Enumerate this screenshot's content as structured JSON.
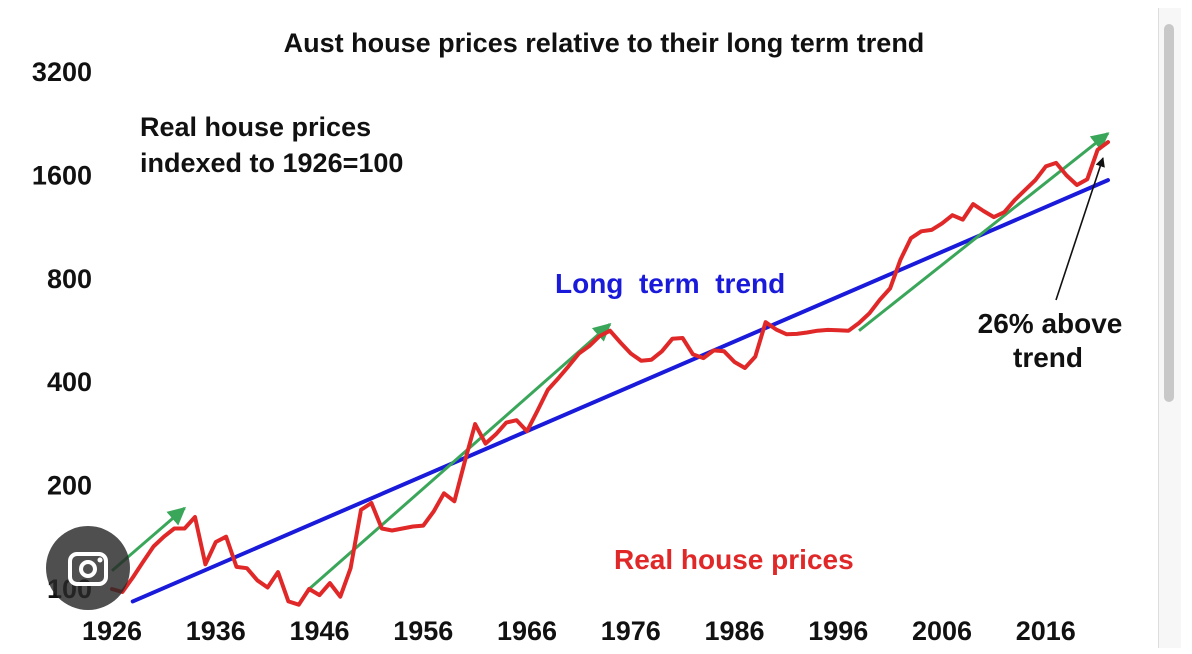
{
  "chart_data": {
    "type": "line",
    "title": "Aust house prices relative to their long term trend",
    "subtitle_lines": [
      "Real house prices",
      "indexed to 1926=100"
    ],
    "xlabel": "",
    "ylabel": "",
    "y_scale": "log2",
    "ylim": [
      100,
      3200
    ],
    "xlim": [
      1926,
      2022
    ],
    "y_ticks": [
      "3200",
      "1600",
      "800",
      "400",
      "200",
      "100"
    ],
    "x_ticks": [
      "1926",
      "1936",
      "1946",
      "1956",
      "1966",
      "1976",
      "1986",
      "1996",
      "2006",
      "2016"
    ],
    "series": [
      {
        "name": "Real house prices",
        "color": "#e02828",
        "points": [
          [
            1926,
            100
          ],
          [
            1927,
            98
          ],
          [
            1928,
            108
          ],
          [
            1929,
            120
          ],
          [
            1930,
            133
          ],
          [
            1931,
            142
          ],
          [
            1932,
            150
          ],
          [
            1933,
            150
          ],
          [
            1934,
            162
          ],
          [
            1935,
            118
          ],
          [
            1936,
            137
          ],
          [
            1937,
            142
          ],
          [
            1938,
            116
          ],
          [
            1939,
            115
          ],
          [
            1940,
            106
          ],
          [
            1941,
            101
          ],
          [
            1942,
            112
          ],
          [
            1943,
            92
          ],
          [
            1944,
            90
          ],
          [
            1945,
            100
          ],
          [
            1946,
            96
          ],
          [
            1947,
            104
          ],
          [
            1948,
            95
          ],
          [
            1949,
            115
          ],
          [
            1950,
            170
          ],
          [
            1951,
            178
          ],
          [
            1952,
            150
          ],
          [
            1953,
            148
          ],
          [
            1954,
            150
          ],
          [
            1955,
            152
          ],
          [
            1956,
            153
          ],
          [
            1957,
            168
          ],
          [
            1958,
            190
          ],
          [
            1959,
            180
          ],
          [
            1960,
            235
          ],
          [
            1961,
            302
          ],
          [
            1962,
            265
          ],
          [
            1963,
            282
          ],
          [
            1964,
            305
          ],
          [
            1965,
            310
          ],
          [
            1966,
            288
          ],
          [
            1967,
            330
          ],
          [
            1968,
            380
          ],
          [
            1969,
            410
          ],
          [
            1970,
            445
          ],
          [
            1971,
            485
          ],
          [
            1972,
            510
          ],
          [
            1973,
            545
          ],
          [
            1974,
            565
          ],
          [
            1975,
            522
          ],
          [
            1976,
            485
          ],
          [
            1977,
            462
          ],
          [
            1978,
            465
          ],
          [
            1979,
            492
          ],
          [
            1980,
            535
          ],
          [
            1981,
            538
          ],
          [
            1982,
            482
          ],
          [
            1983,
            470
          ],
          [
            1984,
            495
          ],
          [
            1985,
            492
          ],
          [
            1986,
            458
          ],
          [
            1987,
            440
          ],
          [
            1988,
            475
          ],
          [
            1989,
            598
          ],
          [
            1990,
            570
          ],
          [
            1991,
            552
          ],
          [
            1992,
            553
          ],
          [
            1993,
            558
          ],
          [
            1994,
            565
          ],
          [
            1995,
            568
          ],
          [
            1996,
            567
          ],
          [
            1997,
            565
          ],
          [
            1998,
            595
          ],
          [
            1999,
            635
          ],
          [
            2000,
            695
          ],
          [
            2001,
            750
          ],
          [
            2002,
            910
          ],
          [
            2003,
            1050
          ],
          [
            2004,
            1100
          ],
          [
            2005,
            1110
          ],
          [
            2006,
            1160
          ],
          [
            2007,
            1225
          ],
          [
            2008,
            1190
          ],
          [
            2009,
            1320
          ],
          [
            2010,
            1260
          ],
          [
            2011,
            1210
          ],
          [
            2012,
            1250
          ],
          [
            2013,
            1355
          ],
          [
            2014,
            1450
          ],
          [
            2015,
            1550
          ],
          [
            2016,
            1700
          ],
          [
            2017,
            1740
          ],
          [
            2018,
            1600
          ],
          [
            2019,
            1500
          ],
          [
            2020,
            1560
          ],
          [
            2021,
            1900
          ],
          [
            2022,
            2000
          ]
        ]
      },
      {
        "name": "Long term trend",
        "color": "#1a1adb",
        "points": [
          [
            1928,
            92
          ],
          [
            2022,
            1550
          ]
        ]
      }
    ],
    "highlight_arrows": {
      "color": "#3aa65a",
      "segments": [
        [
          [
            1926,
            113
          ],
          [
            1933,
            172
          ]
        ],
        [
          [
            1945,
            100
          ],
          [
            1974,
            590
          ]
        ],
        [
          [
            1998,
            565
          ],
          [
            2022,
            2120
          ]
        ]
      ]
    },
    "annotations": {
      "trend_label": "Long  term  trend",
      "series_label": "Real house prices",
      "above_trend_line1": "26% above",
      "above_trend_line2": "trend"
    },
    "colors": {
      "prices": "#e02828",
      "trend": "#1a1adb",
      "arrows": "#3aa65a",
      "text": "#111111"
    }
  },
  "ui": {
    "lens_icon": "lens-search-icon",
    "scrollbar": "vertical-scrollbar"
  }
}
